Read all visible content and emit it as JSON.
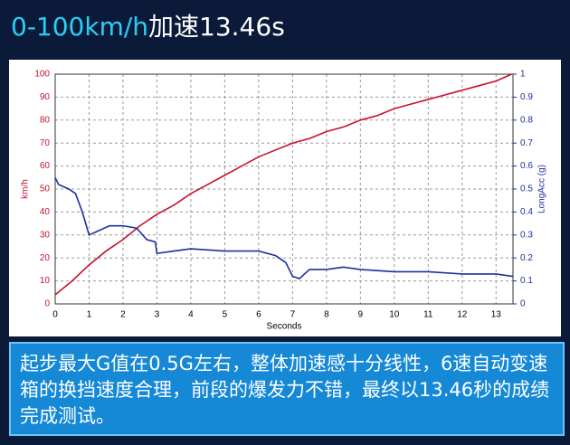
{
  "header": {
    "title_highlight": "0-100km/h",
    "title_rest": "加速13.46s"
  },
  "chart_data": {
    "type": "line",
    "x_label": "Seconds",
    "y_label": "km/h",
    "y2_label": "LongAcc (g)",
    "xlim": [
      0,
      13.5
    ],
    "xticks": [
      0,
      1,
      2,
      3,
      4,
      5,
      6,
      7,
      8,
      9,
      10,
      11,
      12,
      13
    ],
    "ylim": [
      0,
      100
    ],
    "yticks": [
      0,
      10,
      20,
      30,
      40,
      50,
      60,
      70,
      80,
      90,
      100
    ],
    "y2lim": [
      0,
      1
    ],
    "y2ticks": [
      0,
      0.1,
      0.2,
      0.3,
      0.4,
      0.5,
      0.6,
      0.7,
      0.8,
      0.9,
      1
    ],
    "grid": true,
    "series": [
      {
        "name": "km/h",
        "color": "#c8102e",
        "x": [
          0,
          0.5,
          1,
          1.5,
          2,
          2.5,
          3,
          3.5,
          4,
          4.5,
          5,
          5.5,
          6,
          6.5,
          7,
          7.5,
          8,
          8.5,
          9,
          9.5,
          10,
          10.5,
          11,
          11.5,
          12,
          12.5,
          13,
          13.46
        ],
        "values": [
          4,
          10,
          17,
          23,
          28,
          34,
          39,
          43,
          48,
          52,
          56,
          60,
          64,
          67,
          70,
          72,
          75,
          77,
          80,
          82,
          85,
          87,
          89,
          91,
          93,
          95,
          97,
          100
        ]
      },
      {
        "name": "LongAcc (g)",
        "color": "#1c2f9c",
        "axis": "y2",
        "x": [
          0,
          0.1,
          0.4,
          0.6,
          0.8,
          1.0,
          1.3,
          1.6,
          2.0,
          2.4,
          2.7,
          2.95,
          3.0,
          3.5,
          4,
          5,
          6,
          6.5,
          6.8,
          7.0,
          7.2,
          7.5,
          8,
          8.5,
          9,
          10,
          11,
          12,
          13,
          13.5
        ],
        "values": [
          0.55,
          0.52,
          0.5,
          0.48,
          0.4,
          0.3,
          0.32,
          0.34,
          0.34,
          0.33,
          0.28,
          0.27,
          0.22,
          0.23,
          0.24,
          0.23,
          0.23,
          0.21,
          0.18,
          0.12,
          0.11,
          0.15,
          0.15,
          0.16,
          0.15,
          0.14,
          0.14,
          0.13,
          0.13,
          0.12
        ]
      }
    ]
  },
  "caption": "起步最大G值在0.5G左右，整体加速感十分线性，6速自动变速箱的换挡速度合理，前段的爆发力不错，最终以13.46秒的成绩完成测试。"
}
